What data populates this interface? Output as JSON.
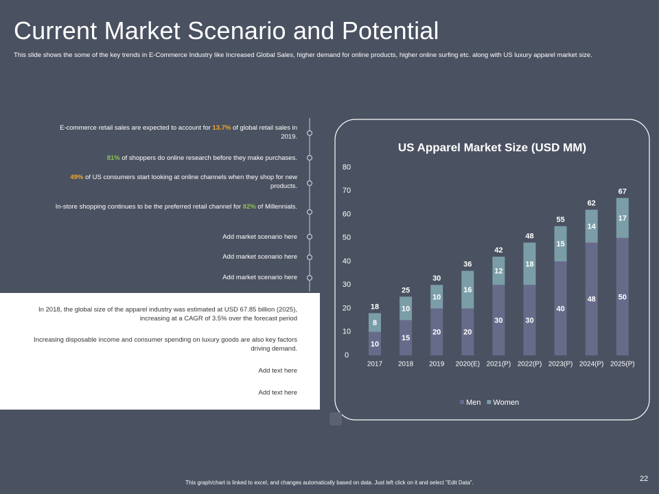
{
  "title": "Current Market Scenario and Potential",
  "subtitle": "This slide shows the some of the key trends in E-Commerce Industry like Increased Global Sales, higher demand for online products, higher online surfing etc. along with US luxury apparel market size.",
  "bullets": [
    {
      "pre": "E-commerce retail sales are expected to account for ",
      "hl": "13.7%",
      "post": " of global retail sales in 2019.",
      "hl_color": "#f0a830"
    },
    {
      "hl": "81%",
      "post": " of shoppers do online research before they make purchases.",
      "hl_color": "#8cc152"
    },
    {
      "hl": "49%",
      "post": " of US consumers start looking at online channels when they shop for new products.",
      "hl_color": "#f0a830"
    },
    {
      "pre": "In-store shopping continues to be the preferred retail channel for ",
      "hl": "82%",
      "post": " of Millennials.",
      "hl_color": "#8cc152"
    },
    {
      "pre": "Add market scenario here"
    },
    {
      "pre": "Add market scenario here"
    },
    {
      "pre": "Add market scenario here"
    }
  ],
  "box_items": [
    "In 2018, the global size of the apparel industry was estimated at USD 67.85 billion (2025), increasing at a CAGR of 3.5% over the forecast period",
    "Increasing disposable income and consumer spending on luxury goods are also key factors driving demand.",
    "Add text here",
    "Add text here"
  ],
  "footnote": "This graph/chart is linked to excel, and changes automatically based on data. Just left click on it and select \"Edit Data\".",
  "page_number": "22",
  "chart_data": {
    "type": "stacked_bar",
    "title": "US Apparel Market Size (USD MM)",
    "categories": [
      "2017",
      "2018",
      "2019",
      "2020(E)",
      "2021(P)",
      "2022(P)",
      "2023(P)",
      "2024(P)",
      "2025(P)"
    ],
    "series": [
      {
        "name": "Men",
        "color": "#676b8a",
        "values": [
          10,
          15,
          20,
          20,
          30,
          30,
          40,
          48,
          50
        ]
      },
      {
        "name": "Women",
        "color": "#7b9da8",
        "values": [
          8,
          10,
          10,
          16,
          12,
          18,
          15,
          14,
          17
        ]
      }
    ],
    "totals": [
      18,
      25,
      30,
      36,
      42,
      48,
      55,
      62,
      67
    ],
    "ylim": [
      0,
      80
    ],
    "yticks": [
      0,
      10,
      20,
      30,
      40,
      50,
      60,
      70,
      80
    ],
    "grid": false,
    "legend": "bottom"
  }
}
